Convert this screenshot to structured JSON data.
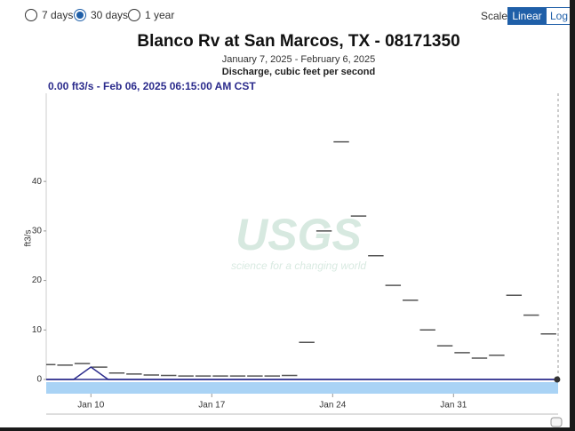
{
  "controls": {
    "periods": [
      "7 days",
      "30 days",
      "1 year"
    ],
    "scale_label": "Scale",
    "scales": [
      "Linear",
      "Log"
    ]
  },
  "watermark": {
    "logo": "USGS",
    "tagline": "science for a changing world"
  },
  "chart_data": {
    "type": "line",
    "title": "Blanco Rv at San Marcos, TX - 08171350",
    "subtitle": "January 7, 2025 - February 6, 2025",
    "description": "Discharge, cubic feet per second",
    "tooltip": "0.00 ft3/s - Feb 06, 2025 06:15:00 AM CST",
    "ylabel": "ft3/s",
    "categories": [
      null,
      null,
      null,
      "Jan 10",
      null,
      null,
      null,
      null,
      null,
      null,
      "Jan 17",
      null,
      null,
      null,
      null,
      null,
      null,
      "Jan 24",
      null,
      null,
      null,
      null,
      null,
      null,
      "Jan 31",
      null,
      null,
      null,
      null,
      null,
      null
    ],
    "series": [
      {
        "color": "#555555",
        "values": [
          3,
          2.9,
          3.2,
          2.5,
          1.3,
          1.1,
          0.9,
          0.8,
          0.7,
          0.7,
          0.7,
          0.7,
          0.7,
          0.7,
          0.8,
          7.5,
          30,
          48,
          33,
          25,
          19,
          16,
          10,
          6.8,
          5.4,
          4.3,
          4.9,
          17,
          13,
          9.2,
          9
        ]
      },
      {
        "color": "#2b2b8c",
        "values": [
          0,
          0,
          0,
          2.5,
          0,
          0,
          0,
          0,
          0,
          0,
          0,
          0,
          0,
          0,
          0,
          0,
          0,
          0,
          0,
          0,
          0,
          0,
          0,
          0,
          0,
          0,
          0,
          0,
          0,
          0,
          0
        ]
      }
    ],
    "ylim": [
      0,
      57.8
    ],
    "yticks": [
      0,
      10,
      20,
      30,
      40
    ],
    "grid": false
  }
}
